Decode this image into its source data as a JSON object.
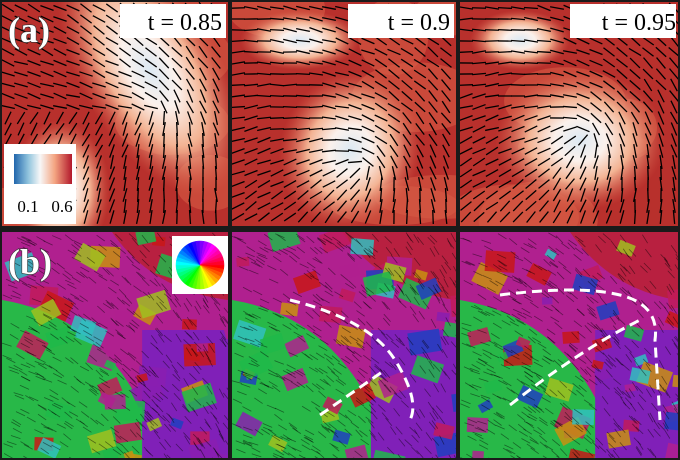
{
  "panel_a": {
    "label": "(a)",
    "times": [
      "t = 0.85",
      "t = 0.9",
      "t = 0.95"
    ],
    "colorbar": {
      "min_label": "0.1",
      "max_label": "0.6"
    }
  },
  "panel_b": {
    "label": "(b)"
  }
}
